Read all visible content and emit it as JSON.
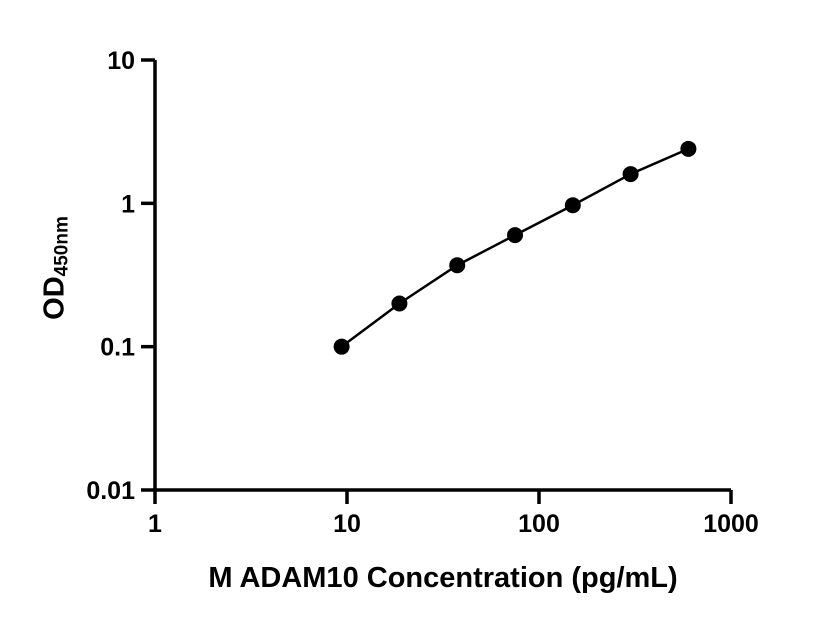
{
  "chart_data": {
    "type": "scatter",
    "x": [
      9.375,
      18.75,
      37.5,
      75,
      150,
      300,
      600
    ],
    "y": [
      0.1,
      0.2,
      0.37,
      0.6,
      0.97,
      1.6,
      2.4
    ],
    "xlabel": "M ADAM10 Concentration (pg/mL)",
    "ylabel_main": "OD",
    "ylabel_sub": "450nm",
    "x_scale": "log",
    "y_scale": "log",
    "xlim": [
      1,
      1000
    ],
    "ylim": [
      0.01,
      10
    ],
    "x_ticks": [
      1,
      10,
      100,
      1000
    ],
    "x_tick_labels": [
      "1",
      "10",
      "100",
      "1000"
    ],
    "y_ticks": [
      0.01,
      0.1,
      1,
      10
    ],
    "y_tick_labels": [
      "0.01",
      "0.1",
      "1",
      "10"
    ],
    "grid": false,
    "legend": false,
    "marker_color": "#000000",
    "line_color": "#000000",
    "axis_color": "#000000"
  }
}
